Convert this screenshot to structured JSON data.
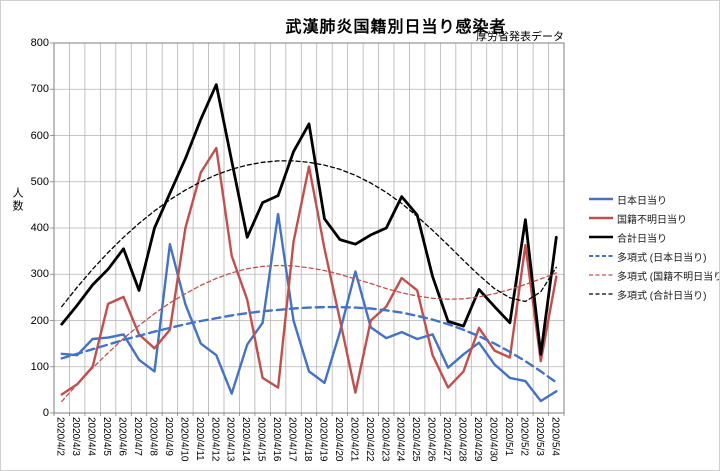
{
  "title": "武漢肺炎国籍別日当り感染者",
  "subtitle": "厚労省発表データ",
  "y_axis_title": "人数",
  "colors": {
    "japan_blue": "#4472c4",
    "unknown_red": "#c0504d",
    "total_black": "#000000",
    "gridline": "#b3b3b3",
    "plot_border": "#7f7f7f"
  },
  "chart_data": {
    "type": "line",
    "title": "武漢肺炎国籍別日当り感染者",
    "subtitle": "厚労省発表データ",
    "ylabel": "人数",
    "ylim": [
      0,
      800
    ],
    "ytick_step": 100,
    "grid": true,
    "legend_position": "right",
    "categories": [
      "2020/4/2",
      "2020/4/3",
      "2020/4/4",
      "2020/4/5",
      "2020/4/6",
      "2020/4/7",
      "2020/4/8",
      "2020/4/9",
      "2020/4/10",
      "2020/4/11",
      "2020/4/12",
      "2020/4/13",
      "2020/4/14",
      "2020/4/15",
      "2020/4/16",
      "2020/4/17",
      "2020/4/18",
      "2020/4/19",
      "2020/4/20",
      "2020/4/21",
      "2020/4/22",
      "2020/4/23",
      "2020/4/24",
      "2020/4/25",
      "2020/4/26",
      "2020/4/27",
      "2020/4/28",
      "2020/4/29",
      "2020/4/30",
      "2020/5/1",
      "2020/5/2",
      "2020/5/3",
      "2020/5/4"
    ],
    "series": [
      {
        "name": "日本日当り",
        "style": "solid",
        "color": "#4472c4",
        "width": 2.4,
        "dash": "",
        "values": [
          128,
          125,
          160,
          163,
          170,
          115,
          90,
          365,
          235,
          150,
          125,
          42,
          148,
          195,
          430,
          200,
          90,
          65,
          175,
          306,
          185,
          162,
          175,
          160,
          170,
          98,
          127,
          152,
          105,
          76,
          69,
          26,
          47
        ]
      },
      {
        "name": "国籍不明日当り",
        "style": "solid",
        "color": "#c0504d",
        "width": 2.4,
        "dash": "",
        "values": [
          40,
          62,
          100,
          236,
          251,
          170,
          140,
          180,
          400,
          520,
          573,
          340,
          245,
          76,
          55,
          370,
          533,
          355,
          202,
          44,
          200,
          230,
          292,
          265,
          125,
          55,
          90,
          184,
          135,
          120,
          363,
          112,
          295
        ]
      },
      {
        "name": "合計日当り",
        "style": "solid",
        "color": "#000000",
        "width": 2.8,
        "dash": "",
        "values": [
          192,
          233,
          277,
          311,
          355,
          265,
          400,
          475,
          550,
          635,
          710,
          545,
          380,
          455,
          470,
          565,
          625,
          420,
          375,
          365,
          385,
          400,
          468,
          428,
          295,
          198,
          188,
          267,
          230,
          195,
          418,
          127,
          380
        ]
      },
      {
        "name": "多項式 (日本日当り)",
        "style": "dashed",
        "color": "#4472c4",
        "width": 2.4,
        "dash": "8,5",
        "values": [
          118,
          128,
          138,
          148,
          158,
          167,
          176,
          184,
          192,
          199,
          205,
          211,
          216,
          220,
          223,
          226,
          228,
          229,
          229,
          228,
          226,
          222,
          217,
          210,
          202,
          192,
          180,
          166,
          150,
          132,
          112,
          90,
          66
        ]
      },
      {
        "name": "多項式 (国籍不明日当り)",
        "style": "dashed",
        "color": "#c0504d",
        "width": 1.3,
        "dash": "4,3",
        "values": [
          25,
          62,
          97,
          130,
          161,
          189,
          215,
          238,
          258,
          276,
          291,
          303,
          312,
          317,
          319,
          318,
          314,
          308,
          300,
          290,
          280,
          269,
          260,
          253,
          248,
          246,
          247,
          251,
          258,
          267,
          278,
          290,
          303
        ]
      },
      {
        "name": "多項式 (合計日当り)",
        "style": "dashed",
        "color": "#000000",
        "width": 1.3,
        "dash": "4,3",
        "values": [
          230,
          272,
          311,
          347,
          380,
          410,
          437,
          461,
          482,
          500,
          515,
          527,
          536,
          542,
          545,
          545,
          542,
          536,
          527,
          514,
          497,
          477,
          453,
          425,
          395,
          363,
          330,
          298,
          269,
          249,
          241,
          262,
          315
        ]
      }
    ]
  }
}
